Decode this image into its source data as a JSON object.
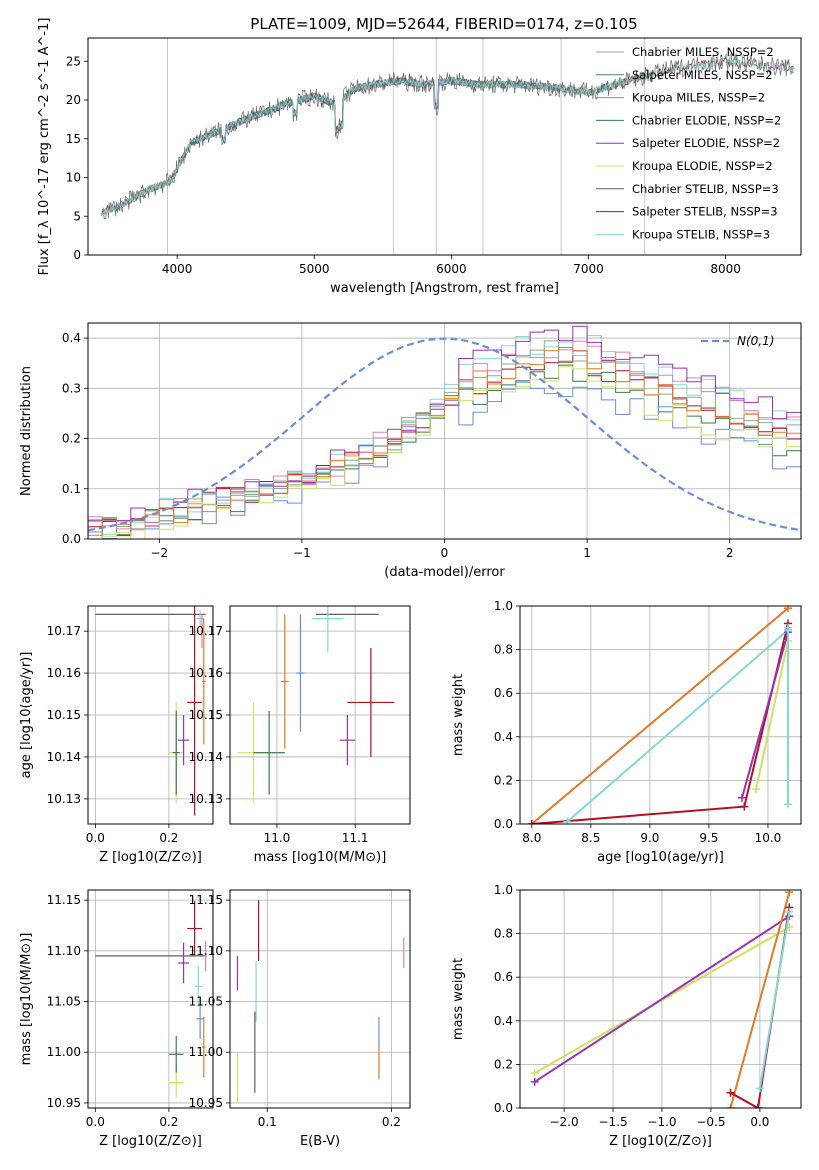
{
  "title": "PLATE=1009, MJD=52644, FIBERID=0174, z=0.105",
  "colors": {
    "chabrier_miles": "#90a890",
    "salpeter_miles": "#4a7a9a",
    "kroupa_miles": "#e07a2a",
    "chabrier_elodie": "#3a7a50",
    "salpeter_elodie": "#9b30b0",
    "kroupa_elodie": "#d0e060",
    "chabrier_stelib": "#606060",
    "salpeter_stelib": "#b01020",
    "kroupa_stelib": "#80d8d8",
    "pink": "#e080b0",
    "blue": "#6a8ee0",
    "gaussian": "#6a8fd8"
  },
  "chart_data": [
    {
      "id": "spectrum",
      "type": "line",
      "title": "PLATE=1009, MJD=52644, FIBERID=0174, z=0.105",
      "xlabel": "wavelength [Angstrom, rest frame]",
      "ylabel": "Flux [f_λ 10^-17 erg cm^-2 s^-1 A^-1]",
      "xlim": [
        3350,
        8550
      ],
      "ylim": [
        0,
        28
      ],
      "xticks": [
        "4000",
        "5000",
        "6000",
        "7000",
        "8000"
      ],
      "yticks": [
        "0",
        "5",
        "10",
        "15",
        "20",
        "25"
      ],
      "grid": false,
      "legend_position": "top-right",
      "legend": [
        "Chabrier MILES, NSSP=2",
        "Salpeter MILES, NSSP=2",
        "Kroupa MILES, NSSP=2",
        "Chabrier ELODIE, NSSP=2",
        "Salpeter ELODIE, NSSP=2",
        "Kroupa ELODIE, NSSP=2",
        "Chabrier STELIB, NSSP=3",
        "Salpeter STELIB, NSSP=3",
        "Kroupa STELIB, NSSP=3"
      ],
      "envelope": {
        "x": [
          3450,
          3600,
          3800,
          3950,
          4100,
          4300,
          4500,
          4800,
          5000,
          5150,
          5300,
          5600,
          5800,
          6000,
          6200,
          6500,
          6800,
          7000,
          7300,
          7600,
          8000,
          8300,
          8500
        ],
        "y": [
          5.5,
          6.5,
          8.5,
          9.5,
          14.5,
          16,
          17.5,
          19.5,
          20.5,
          19.5,
          21.5,
          22.5,
          22,
          22.5,
          22,
          22,
          21.5,
          21,
          22.5,
          24,
          25,
          24.5,
          24
        ]
      },
      "vlines": [
        3930,
        5577,
        5890,
        6230,
        6800,
        7410
      ]
    },
    {
      "id": "residuals",
      "type": "line",
      "xlabel": "(data-model)/error",
      "ylabel": "Normed distribution",
      "xlim": [
        -2.5,
        2.5
      ],
      "ylim": [
        0,
        0.43
      ],
      "xticks": [
        "-2",
        "-1",
        "0",
        "1",
        "2"
      ],
      "yticks": [
        "0.0",
        "0.1",
        "0.2",
        "0.3",
        "0.4"
      ],
      "grid": true,
      "legend": [
        "N(0,1)"
      ],
      "legend_position": "top-right",
      "histogram": {
        "edges_start": -2.5,
        "bin_width": 0.1,
        "base": [
          0.02,
          0.022,
          0.025,
          0.03,
          0.035,
          0.045,
          0.05,
          0.06,
          0.07,
          0.08,
          0.085,
          0.095,
          0.1,
          0.105,
          0.11,
          0.12,
          0.125,
          0.14,
          0.15,
          0.165,
          0.18,
          0.2,
          0.22,
          0.24,
          0.26,
          0.28,
          0.295,
          0.31,
          0.32,
          0.33,
          0.34,
          0.345,
          0.35,
          0.355,
          0.35,
          0.34,
          0.33,
          0.32,
          0.31,
          0.3,
          0.29,
          0.28,
          0.27,
          0.26,
          0.25,
          0.24,
          0.23,
          0.22,
          0.21,
          0.2
        ]
      }
    },
    {
      "id": "age-vs-Z",
      "type": "scatter",
      "xlabel": "Z [log10(Z/Z⊙)]",
      "ylabel": "age  [log10(age/yr)]",
      "xlim": [
        -0.02,
        0.32
      ],
      "ylim": [
        10.124,
        10.176
      ],
      "xticks": [
        "0.0",
        "0.2"
      ],
      "yticks": [
        "10.13",
        "10.14",
        "10.15",
        "10.16",
        "10.17"
      ],
      "grid": true,
      "points": [
        {
          "x": 0.15,
          "y": 10.174,
          "xerr": 0.15,
          "yerr": 0.0,
          "c": "chabrier_stelib"
        },
        {
          "x": 0.22,
          "y": 10.141,
          "xerr": 0.02,
          "yerr": 0.012,
          "c": "kroupa_elodie"
        },
        {
          "x": 0.24,
          "y": 10.144,
          "xerr": 0.015,
          "yerr": 0.006,
          "c": "salpeter_elodie"
        },
        {
          "x": 0.22,
          "y": 10.141,
          "xerr": 0.01,
          "yerr": 0.01,
          "c": "chabrier_elodie"
        },
        {
          "x": 0.27,
          "y": 10.153,
          "xerr": 0.02,
          "yerr": 0.027,
          "c": "salpeter_stelib"
        },
        {
          "x": 0.285,
          "y": 10.173,
          "xerr": 0.01,
          "yerr": 0.002,
          "c": "kroupa_stelib"
        },
        {
          "x": 0.295,
          "y": 10.158,
          "xerr": 0.005,
          "yerr": 0.015,
          "c": "kroupa_miles"
        },
        {
          "x": 0.29,
          "y": 10.17,
          "xerr": 0.003,
          "yerr": 0.004,
          "c": "pink"
        }
      ]
    },
    {
      "id": "age-vs-mass",
      "type": "scatter",
      "xlabel": "mass [log10(M/M⊙)]",
      "ylabel": "",
      "xlim": [
        10.94,
        11.17
      ],
      "ylim": [
        10.124,
        10.176
      ],
      "xticks": [
        "11.0",
        "11.1"
      ],
      "yticks": [
        "10.13",
        "10.14",
        "10.15",
        "10.16",
        "10.17"
      ],
      "grid": true,
      "points": [
        {
          "x": 11.09,
          "y": 10.174,
          "xerr": 0.04,
          "yerr": 0.0,
          "c": "chabrier_stelib"
        },
        {
          "x": 10.97,
          "y": 10.141,
          "xerr": 0.02,
          "yerr": 0.012,
          "c": "kroupa_elodie"
        },
        {
          "x": 10.99,
          "y": 10.141,
          "xerr": 0.02,
          "yerr": 0.01,
          "c": "chabrier_elodie"
        },
        {
          "x": 11.01,
          "y": 10.158,
          "xerr": 0.005,
          "yerr": 0.016,
          "c": "kroupa_miles"
        },
        {
          "x": 11.03,
          "y": 10.16,
          "xerr": 0.005,
          "yerr": 0.014,
          "c": "blue"
        },
        {
          "x": 11.065,
          "y": 10.173,
          "xerr": 0.02,
          "yerr": 0.008,
          "c": "kroupa_stelib"
        },
        {
          "x": 11.09,
          "y": 10.144,
          "xerr": 0.01,
          "yerr": 0.006,
          "c": "salpeter_elodie"
        },
        {
          "x": 11.12,
          "y": 10.153,
          "xerr": 0.03,
          "yerr": 0.013,
          "c": "salpeter_stelib"
        }
      ]
    },
    {
      "id": "weight-vs-age",
      "type": "line",
      "xlabel": "age  [log10(age/yr)]",
      "ylabel": "mass weight",
      "xlim": [
        7.9,
        10.28
      ],
      "ylim": [
        0,
        1.0
      ],
      "xticks": [
        "8.0",
        "8.5",
        "9.0",
        "9.5",
        "10.0"
      ],
      "yticks": [
        "0.0",
        "0.2",
        "0.4",
        "0.6",
        "0.8",
        "1.0"
      ],
      "grid": true,
      "series": [
        {
          "c": "kroupa_miles",
          "x": [
            8.0,
            10.17
          ],
          "y": [
            0.0,
            0.99
          ]
        },
        {
          "c": "salpeter_stelib",
          "x": [
            8.0,
            9.8,
            10.17
          ],
          "y": [
            0.0,
            0.08,
            0.92
          ]
        },
        {
          "c": "kroupa_stelib",
          "x": [
            8.3,
            10.17
          ],
          "y": [
            0.01,
            0.89
          ]
        },
        {
          "c": "kroupa_elodie",
          "x": [
            9.9,
            10.17
          ],
          "y": [
            0.16,
            0.84
          ]
        },
        {
          "c": "salpeter_elodie",
          "x": [
            9.78,
            10.17
          ],
          "y": [
            0.12,
            0.88
          ]
        },
        {
          "c": "kroupa_stelib",
          "x": [
            10.17,
            10.17
          ],
          "y": [
            0.09,
            0.9
          ]
        }
      ]
    },
    {
      "id": "mass-vs-Z",
      "type": "scatter",
      "xlabel": "Z [log10(Z/Z⊙)]",
      "ylabel": "mass [log10(M/M⊙)]",
      "xlim": [
        -0.02,
        0.32
      ],
      "ylim": [
        10.945,
        11.16
      ],
      "xticks": [
        "0.0",
        "0.2"
      ],
      "yticks": [
        "10.95",
        "11.00",
        "11.05",
        "11.10",
        "11.15"
      ],
      "grid": true,
      "points": [
        {
          "x": 0.15,
          "y": 11.095,
          "xerr": 0.15,
          "yerr": 0.0,
          "c": "chabrier_stelib"
        },
        {
          "x": 0.22,
          "y": 10.97,
          "xerr": 0.02,
          "yerr": 0.015,
          "c": "kroupa_elodie"
        },
        {
          "x": 0.22,
          "y": 10.998,
          "xerr": 0.02,
          "yerr": 0.018,
          "c": "chabrier_elodie"
        },
        {
          "x": 0.24,
          "y": 11.088,
          "xerr": 0.015,
          "yerr": 0.02,
          "c": "salpeter_elodie"
        },
        {
          "x": 0.27,
          "y": 11.122,
          "xerr": 0.02,
          "yerr": 0.027,
          "c": "salpeter_stelib"
        },
        {
          "x": 0.28,
          "y": 11.065,
          "xerr": 0.01,
          "yerr": 0.02,
          "c": "kroupa_stelib"
        },
        {
          "x": 0.285,
          "y": 11.033,
          "xerr": 0.01,
          "yerr": 0.02,
          "c": "blue"
        },
        {
          "x": 0.295,
          "y": 11.005,
          "xerr": 0.005,
          "yerr": 0.03,
          "c": "kroupa_miles"
        },
        {
          "x": 0.3,
          "y": 11.095,
          "xerr": 0.003,
          "yerr": 0.015,
          "c": "pink"
        }
      ]
    },
    {
      "id": "mass-vs-ebv",
      "type": "scatter",
      "xlabel": "E(B-V)",
      "ylabel": "",
      "xlim": [
        0.07,
        0.215
      ],
      "ylim": [
        10.945,
        11.16
      ],
      "xticks": [
        "0.1",
        "0.2"
      ],
      "yticks": [
        "10.95",
        "11.00",
        "11.05",
        "11.10",
        "11.15"
      ],
      "grid": true,
      "points": [
        {
          "x": 0.076,
          "y": 10.975,
          "xerr": 0,
          "yerr": 0.025,
          "c": "kroupa_elodie"
        },
        {
          "x": 0.076,
          "y": 11.078,
          "xerr": 0,
          "yerr": 0.017,
          "c": "salpeter_elodie"
        },
        {
          "x": 0.091,
          "y": 11.06,
          "xerr": 0,
          "yerr": 0.03,
          "c": "kroupa_stelib"
        },
        {
          "x": 0.09,
          "y": 11.0,
          "xerr": 0,
          "yerr": 0.04,
          "c": "chabrier_stelib"
        },
        {
          "x": 0.093,
          "y": 11.12,
          "xerr": 0,
          "yerr": 0.03,
          "c": "salpeter_stelib"
        },
        {
          "x": 0.19,
          "y": 11.02,
          "xerr": 0,
          "yerr": 0.015,
          "c": "blue"
        },
        {
          "x": 0.19,
          "y": 10.99,
          "xerr": 0,
          "yerr": 0.017,
          "c": "kroupa_miles"
        },
        {
          "x": 0.21,
          "y": 11.098,
          "xerr": 0,
          "yerr": 0.015,
          "c": "pink"
        }
      ]
    },
    {
      "id": "weight-vs-Z",
      "type": "line",
      "xlabel": "Z [log10(Z/Z⊙)]",
      "ylabel": "mass weight",
      "xlim": [
        -2.45,
        0.42
      ],
      "ylim": [
        0,
        1.0
      ],
      "xticks": [
        "-2.0",
        "-1.5",
        "-1.0",
        "-0.5",
        "0.0"
      ],
      "yticks": [
        "0.0",
        "0.2",
        "0.4",
        "0.6",
        "0.8",
        "1.0"
      ],
      "grid": true,
      "series": [
        {
          "c": "kroupa_elodie",
          "x": [
            -2.3,
            0.3
          ],
          "y": [
            0.16,
            0.83
          ]
        },
        {
          "c": "salpeter_elodie",
          "x": [
            -2.3,
            0.3
          ],
          "y": [
            0.12,
            0.88
          ]
        },
        {
          "c": "kroupa_miles",
          "x": [
            -0.3,
            0.3
          ],
          "y": [
            0.0,
            0.99
          ]
        },
        {
          "c": "salpeter_stelib",
          "x": [
            -0.3,
            -0.02,
            0.3
          ],
          "y": [
            0.07,
            0.0,
            0.92
          ]
        },
        {
          "c": "kroupa_stelib",
          "x": [
            0.0,
            0.3
          ],
          "y": [
            0.09,
            0.9
          ]
        }
      ]
    }
  ]
}
